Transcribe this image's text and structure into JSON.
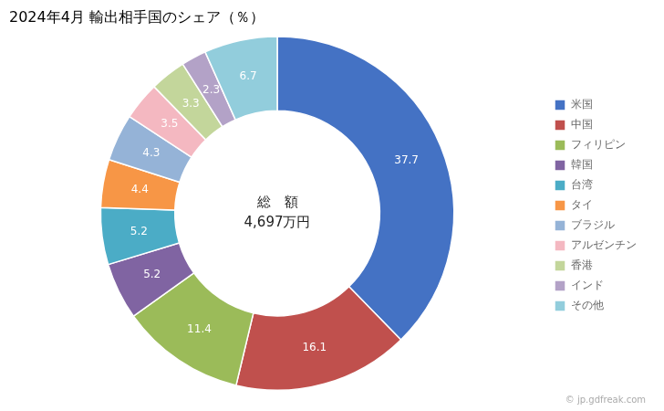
{
  "chart_data": {
    "type": "doughnut",
    "title": "2024年4月 輸出相手国のシェア（％）",
    "categories": [
      "米国",
      "中国",
      "フィリピン",
      "韓国",
      "台湾",
      "タイ",
      "ブラジル",
      "アルゼンチン",
      "香港",
      "インド",
      "その他"
    ],
    "values": [
      37.7,
      16.1,
      11.4,
      5.2,
      5.2,
      4.4,
      4.3,
      3.5,
      3.3,
      2.3,
      6.7
    ],
    "colors": [
      "#4472C4",
      "#C0504D",
      "#9BBB59",
      "#8064A2",
      "#4BACC6",
      "#F79646",
      "#95B3D7",
      "#F4B8C1",
      "#C3D69B",
      "#B3A2C7",
      "#92CDDC"
    ],
    "data_labels": true,
    "legend": "right",
    "annotations": [
      "総　額",
      "4,697万円"
    ],
    "caption": "© jp.gdfreak.com"
  }
}
